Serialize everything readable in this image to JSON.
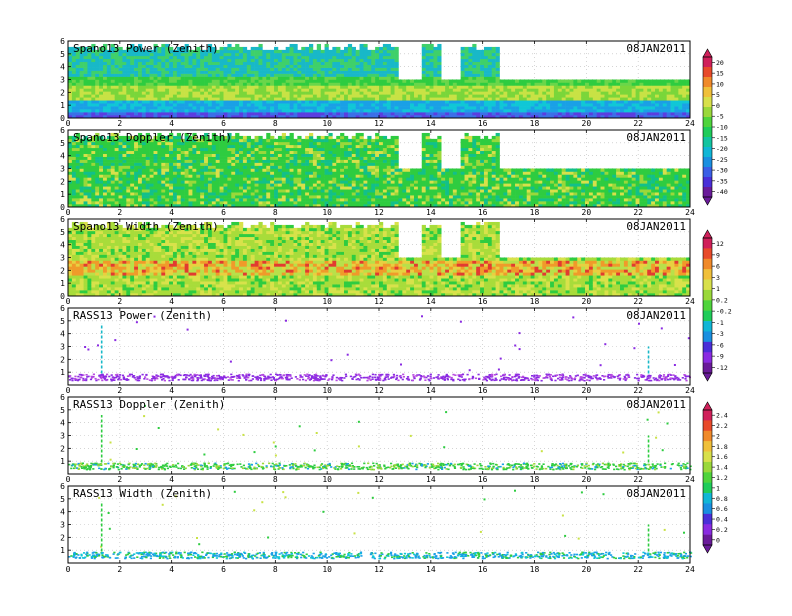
{
  "date_label": "08JAN2011",
  "x_ticks": [
    "0",
    "2",
    "4",
    "6",
    "8",
    "10",
    "12",
    "14",
    "16",
    "18",
    "20",
    "22",
    "24"
  ],
  "colorbars": [
    {
      "id": "cb1",
      "ticks": [
        "20",
        "15",
        "10",
        "5",
        "0",
        "-5",
        "-10",
        "-15",
        "-20",
        "-25",
        "-30",
        "-35",
        "-40"
      ]
    },
    {
      "id": "cb2",
      "ticks": [
        "12",
        "9",
        "6",
        "3",
        "1",
        "0.2",
        "-0.2",
        "-1",
        "-3",
        "-6",
        "-9",
        "-12"
      ]
    },
    {
      "id": "cb3",
      "ticks": [
        "2.4",
        "2.2",
        "2",
        "1.8",
        "1.6",
        "1.4",
        "1.2",
        "1",
        "0.8",
        "0.6",
        "0.4",
        "0.2",
        "0"
      ]
    }
  ],
  "chart_data": [
    {
      "type": "heatmap",
      "title": "Spano13 Power (Zenith)",
      "date": "08JAN2011",
      "x_range": [
        0,
        24
      ],
      "y_range": [
        0,
        6
      ],
      "x_ticks": [
        0,
        2,
        4,
        6,
        8,
        10,
        12,
        14,
        16,
        18,
        20,
        22,
        24
      ],
      "y_ticks": [
        0,
        1,
        2,
        3,
        4,
        5,
        6
      ],
      "gaps_hours": [
        [
          12.8,
          13.6
        ],
        [
          14.4,
          15.2
        ],
        [
          16.6,
          24.0
        ]
      ],
      "upper_data_limit_km": 3.2,
      "colorscale_range": [
        -40,
        20
      ]
    },
    {
      "type": "heatmap",
      "title": "Spano13 Doppler (Zenith)",
      "date": "08JAN2011",
      "x_range": [
        0,
        24
      ],
      "y_range": [
        0,
        6
      ],
      "x_ticks": [
        0,
        2,
        4,
        6,
        8,
        10,
        12,
        14,
        16,
        18,
        20,
        22,
        24
      ],
      "y_ticks": [
        0,
        1,
        2,
        3,
        4,
        5,
        6
      ],
      "gaps_hours": [
        [
          12.8,
          13.6
        ],
        [
          14.4,
          15.2
        ],
        [
          16.6,
          24.0
        ]
      ],
      "upper_data_limit_km": 3.2
    },
    {
      "type": "heatmap",
      "title": "Spano13 Width (Zenith)",
      "date": "08JAN2011",
      "x_range": [
        0,
        24
      ],
      "y_range": [
        0,
        6
      ],
      "x_ticks": [
        0,
        2,
        4,
        6,
        8,
        10,
        12,
        14,
        16,
        18,
        20,
        22,
        24
      ],
      "y_ticks": [
        0,
        1,
        2,
        3,
        4,
        5,
        6
      ],
      "gaps_hours": [
        [
          12.8,
          13.6
        ],
        [
          14.4,
          15.2
        ],
        [
          16.6,
          24.0
        ]
      ],
      "upper_data_limit_km": 3.2
    },
    {
      "type": "scatter",
      "title": "RASS13 Power (Zenith)",
      "date": "08JAN2011",
      "x_range": [
        0,
        24
      ],
      "y_range": [
        0,
        6
      ],
      "x_ticks": [
        0,
        2,
        4,
        6,
        8,
        10,
        12,
        14,
        16,
        18,
        20,
        22,
        24
      ],
      "y_ticks": [
        1,
        2,
        3,
        4,
        5,
        6
      ],
      "band_height_km": [
        0.4,
        0.9
      ],
      "vertical_spikes": [
        {
          "x": 1.3,
          "y_top": 4.8
        },
        {
          "x": 22.4,
          "y_top": 3.0
        }
      ],
      "colorscale_range": [
        -12,
        12
      ]
    },
    {
      "type": "scatter",
      "title": "RASS13 Doppler (Zenith)",
      "date": "08JAN2011",
      "x_range": [
        0,
        24
      ],
      "y_range": [
        0,
        6
      ],
      "x_ticks": [
        0,
        2,
        4,
        6,
        8,
        10,
        12,
        14,
        16,
        18,
        20,
        22,
        24
      ],
      "y_ticks": [
        1,
        2,
        3,
        4,
        5,
        6
      ],
      "band_height_km": [
        0.4,
        0.9
      ],
      "vertical_spikes": [
        {
          "x": 1.3,
          "y_top": 4.6
        },
        {
          "x": 22.4,
          "y_top": 3.0
        }
      ],
      "colorscale_range": [
        0,
        2.4
      ]
    },
    {
      "type": "scatter",
      "title": "RASS13 Width (Zenith)",
      "date": "08JAN2011",
      "x_range": [
        0,
        24
      ],
      "y_range": [
        0,
        6
      ],
      "x_ticks": [
        0,
        2,
        4,
        6,
        8,
        10,
        12,
        14,
        16,
        18,
        20,
        22,
        24
      ],
      "y_ticks": [
        1,
        2,
        3,
        4,
        5,
        6
      ],
      "band_height_km": [
        0.4,
        0.9
      ],
      "vertical_spikes": [
        {
          "x": 1.3,
          "y_top": 4.8
        },
        {
          "x": 22.4,
          "y_top": 3.0
        }
      ]
    }
  ]
}
